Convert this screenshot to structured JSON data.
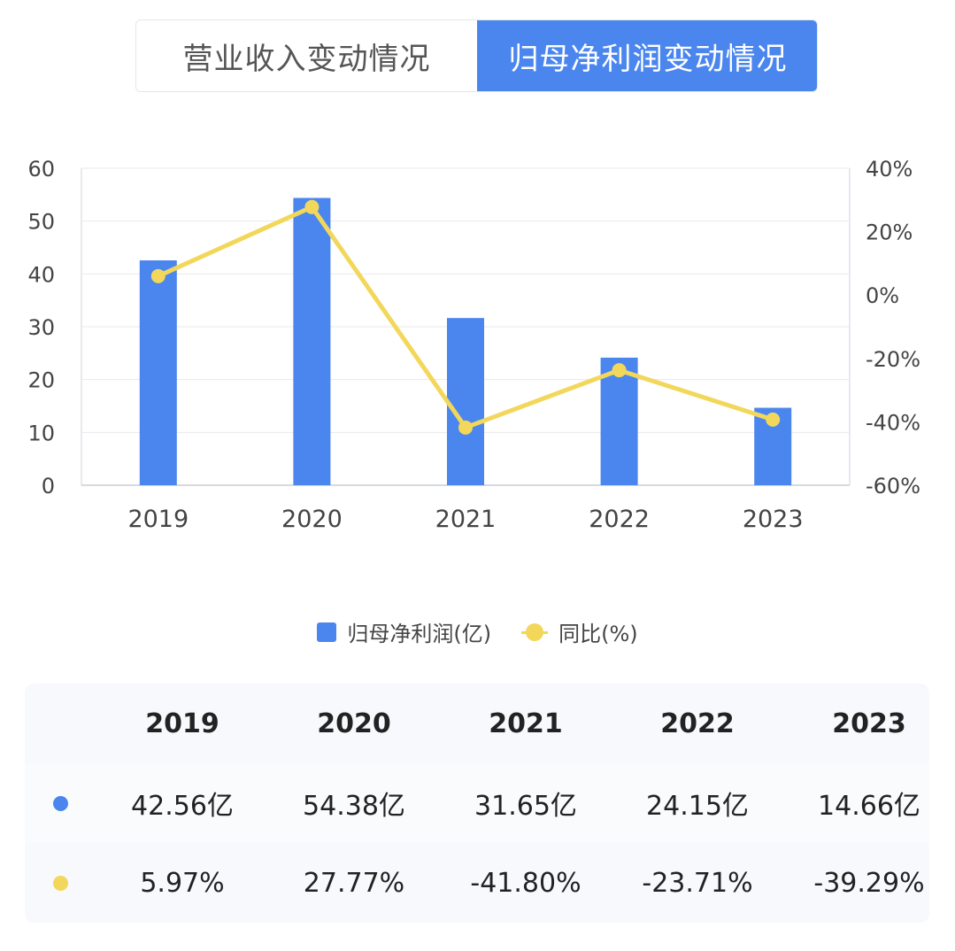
{
  "tabs": {
    "revenue": "营业收入变动情况",
    "profit": "归母净利润变动情况"
  },
  "colors": {
    "bar": "#4a86ee",
    "line": "#f2d75b",
    "grid": "#e6e9ee"
  },
  "chart_data": {
    "type": "bar",
    "categories": [
      "2019",
      "2020",
      "2021",
      "2022",
      "2023"
    ],
    "series": [
      {
        "name": "归母净利润(亿)",
        "type": "bar",
        "axis": "left",
        "values": [
          42.56,
          54.38,
          31.65,
          24.15,
          14.66
        ]
      },
      {
        "name": "同比(%)",
        "type": "line",
        "axis": "right",
        "values": [
          5.97,
          27.77,
          -41.8,
          -23.71,
          -39.29
        ]
      }
    ],
    "left_axis": {
      "min": 0,
      "max": 60,
      "ticks": [
        0,
        10,
        20,
        30,
        40,
        50,
        60
      ],
      "tick_labels": [
        "0",
        "10",
        "20",
        "30",
        "40",
        "50",
        "60"
      ]
    },
    "right_axis": {
      "min": -60,
      "max": 40,
      "ticks": [
        -60,
        -40,
        -20,
        0,
        20,
        40
      ],
      "tick_labels": [
        "-60%",
        "-40%",
        "-20%",
        "0%",
        "20%",
        "40%"
      ]
    },
    "legend_position": "bottom"
  },
  "legend": {
    "bar_label": "归母净利润(亿)",
    "line_label": "同比(%)"
  },
  "table": {
    "years": [
      "2019",
      "2020",
      "2021",
      "2022",
      "2023"
    ],
    "profit": [
      "42.56亿",
      "54.38亿",
      "31.65亿",
      "24.15亿",
      "14.66亿"
    ],
    "yoy": [
      "5.97%",
      "27.77%",
      "-41.80%",
      "-23.71%",
      "-39.29%"
    ]
  }
}
